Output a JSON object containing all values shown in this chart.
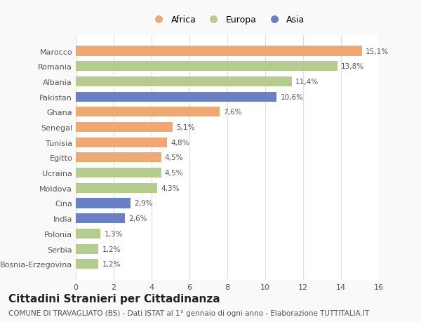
{
  "countries": [
    "Bosnia-Erzegovina",
    "Serbia",
    "Polonia",
    "India",
    "Cina",
    "Moldova",
    "Ucraina",
    "Egitto",
    "Tunisia",
    "Senegal",
    "Ghana",
    "Pakistan",
    "Albania",
    "Romania",
    "Marocco"
  ],
  "values": [
    1.2,
    1.2,
    1.3,
    2.6,
    2.9,
    4.3,
    4.5,
    4.5,
    4.8,
    5.1,
    7.6,
    10.6,
    11.4,
    13.8,
    15.1
  ],
  "labels": [
    "1,2%",
    "1,2%",
    "1,3%",
    "2,6%",
    "2,9%",
    "4,3%",
    "4,5%",
    "4,5%",
    "4,8%",
    "5,1%",
    "7,6%",
    "10,6%",
    "11,4%",
    "13,8%",
    "15,1%"
  ],
  "colors": [
    "#b5cc8e",
    "#b5cc8e",
    "#b5cc8e",
    "#6b7fc4",
    "#6b7fc4",
    "#b5cc8e",
    "#b5cc8e",
    "#f0a872",
    "#f0a872",
    "#f0a872",
    "#f0a872",
    "#6b7fc4",
    "#b5cc8e",
    "#b5cc8e",
    "#f0a872"
  ],
  "legend": [
    {
      "label": "Africa",
      "color": "#f0a872"
    },
    {
      "label": "Europa",
      "color": "#b5cc8e"
    },
    {
      "label": "Asia",
      "color": "#6b7fc4"
    }
  ],
  "xlim": [
    0,
    16
  ],
  "xticks": [
    0,
    2,
    4,
    6,
    8,
    10,
    12,
    14,
    16
  ],
  "title": "Cittadini Stranieri per Cittadinanza",
  "subtitle": "COMUNE DI TRAVAGLIATO (BS) - Dati ISTAT al 1° gennaio di ogni anno - Elaborazione TUTTITALIA.IT",
  "bg_color": "#f9f9f9",
  "bar_bg_color": "#ffffff",
  "grid_color": "#dddddd",
  "title_fontsize": 11,
  "subtitle_fontsize": 7.5,
  "label_fontsize": 7.5,
  "tick_fontsize": 8,
  "legend_fontsize": 9
}
